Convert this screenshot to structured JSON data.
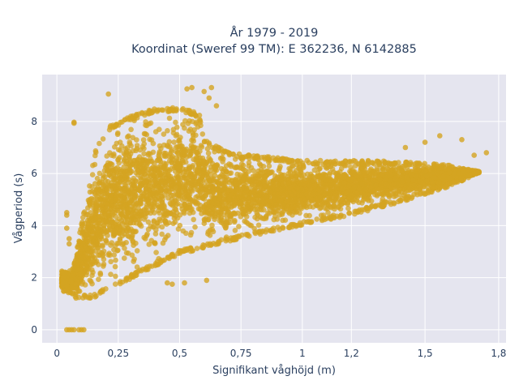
{
  "chart_data": {
    "type": "scatter",
    "title_line1": "År 1979 - 2019",
    "title_line2": "Koordinat (Sweref 99 TM): E 362236, N 6142885",
    "xlabel": "Signifikant våghöjd (m)",
    "ylabel": "Vågperiod (s)",
    "xlim": [
      -0.06,
      1.83
    ],
    "ylim": [
      -0.5,
      9.8
    ],
    "x_ticks": [
      0,
      0.25,
      0.5,
      0.75,
      1,
      1.2,
      1.5,
      1.8
    ],
    "x_tick_labels": [
      "0",
      "0,25",
      "0,5",
      "0,75",
      "1",
      "1,2",
      "1,5",
      "1,8"
    ],
    "y_ticks": [
      0,
      2,
      4,
      6,
      8
    ],
    "y_tick_labels": [
      "0",
      "2",
      "4",
      "6",
      "8"
    ],
    "grid": true,
    "legend": "none",
    "marker_color": "#d4a421",
    "background_color": "#e5e5ef",
    "series": [
      {
        "envelope": {
          "upper": [
            [
              0.06,
              2.3
            ],
            [
              0.09,
              3.6
            ],
            [
              0.12,
              5.0
            ],
            [
              0.16,
              7.0
            ],
            [
              0.21,
              7.8
            ],
            [
              0.3,
              8.2
            ],
            [
              0.4,
              8.5
            ],
            [
              0.5,
              8.55
            ],
            [
              0.58,
              8.3
            ],
            [
              0.6,
              7.3
            ],
            [
              0.7,
              6.8
            ],
            [
              1.0,
              6.5
            ],
            [
              1.3,
              6.5
            ],
            [
              1.5,
              6.4
            ],
            [
              1.62,
              6.3
            ],
            [
              1.72,
              6.1
            ]
          ],
          "lower": [
            [
              0.02,
              1.5
            ],
            [
              0.08,
              1.2
            ],
            [
              0.15,
              1.2
            ],
            [
              0.25,
              1.7
            ],
            [
              0.35,
              2.2
            ],
            [
              0.5,
              2.9
            ],
            [
              0.75,
              3.5
            ],
            [
              1.0,
              4.0
            ],
            [
              1.2,
              4.4
            ],
            [
              1.4,
              4.9
            ],
            [
              1.6,
              5.5
            ],
            [
              1.72,
              6.0
            ]
          ]
        },
        "outliers": [
          [
            0.21,
            9.05
          ],
          [
            0.53,
            9.25
          ],
          [
            0.55,
            9.3
          ],
          [
            0.6,
            9.15
          ],
          [
            0.63,
            9.3
          ],
          [
            0.62,
            8.9
          ],
          [
            0.65,
            8.6
          ],
          [
            0.07,
            7.97
          ],
          [
            0.07,
            7.93
          ],
          [
            0.04,
            0.0
          ],
          [
            0.05,
            0.0
          ],
          [
            0.06,
            0.0
          ],
          [
            0.07,
            0.0
          ],
          [
            0.09,
            0.0
          ],
          [
            0.1,
            0.0
          ],
          [
            0.11,
            0.0
          ],
          [
            0.04,
            4.5
          ],
          [
            0.04,
            4.4
          ],
          [
            0.04,
            3.9
          ],
          [
            0.05,
            3.5
          ],
          [
            0.05,
            3.3
          ],
          [
            1.56,
            7.45
          ],
          [
            1.5,
            7.2
          ],
          [
            1.65,
            7.3
          ],
          [
            1.75,
            6.8
          ],
          [
            1.7,
            6.7
          ],
          [
            1.42,
            7.0
          ],
          [
            0.45,
            1.8
          ],
          [
            0.47,
            1.75
          ],
          [
            0.52,
            1.8
          ],
          [
            0.61,
            1.9
          ],
          [
            0.7,
            6.8
          ],
          [
            0.78,
            6.7
          ],
          [
            0.9,
            6.6
          ]
        ]
      }
    ]
  }
}
